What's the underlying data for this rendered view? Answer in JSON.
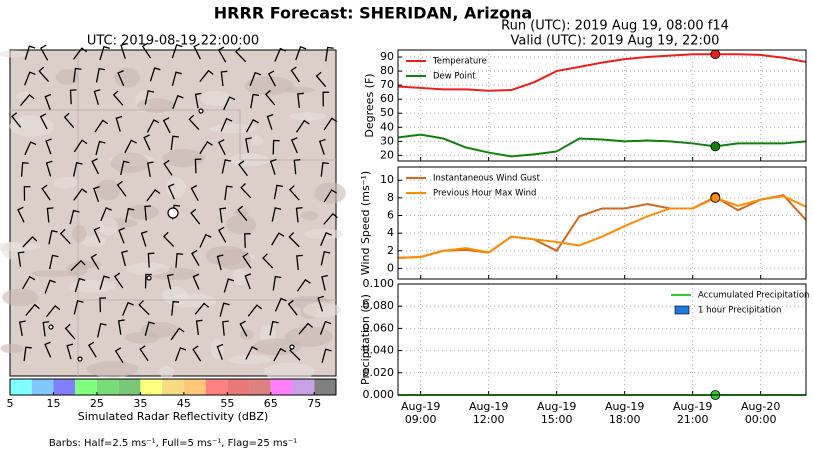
{
  "title": "HRRR Forecast: SHERIDAN, Arizona",
  "run": "Run (UTC): 2019 Aug 19, 08:00 f14",
  "valid": "Valid (UTC): 2019 Aug 19, 22:00",
  "map": {
    "title": "UTC: 2019-08-19 22:00:00",
    "colorbar": {
      "label": "Simulated Radar Reflectivity (dBZ)",
      "lim": [
        5,
        80
      ],
      "step": 5,
      "ticks": [
        5,
        15,
        25,
        35,
        45,
        55,
        65,
        75
      ],
      "colors": [
        "#80ffff",
        "#80c8ff",
        "#8080ff",
        "#80ff80",
        "#78dc78",
        "#78c878",
        "#ffff80",
        "#f5dc82",
        "#ffc878",
        "#ff8080",
        "#eb7878",
        "#dc8080",
        "#ff80ff",
        "#c8a0e6",
        "#808080"
      ]
    },
    "barbs_note": "Barbs: Half=2.5 ms⁻¹, Full=5 ms⁻¹, Flag=25 ms⁻¹"
  },
  "highlight_x": "Aug-19 22:00",
  "chart_data": [
    {
      "type": "line",
      "x": [
        "Aug-19 08:00",
        "Aug-19 09:00",
        "Aug-19 10:00",
        "Aug-19 11:00",
        "Aug-19 12:00",
        "Aug-19 13:00",
        "Aug-19 14:00",
        "Aug-19 15:00",
        "Aug-19 16:00",
        "Aug-19 17:00",
        "Aug-19 18:00",
        "Aug-19 19:00",
        "Aug-19 20:00",
        "Aug-19 21:00",
        "Aug-19 22:00",
        "Aug-19 23:00",
        "Aug-20 00:00",
        "Aug-20 01:00",
        "Aug-20 02:00"
      ],
      "ylabel": "Degrees (F)",
      "ylim": [
        16,
        95
      ],
      "yticks": [
        20,
        30,
        40,
        50,
        60,
        70,
        80,
        90
      ],
      "grid": true,
      "legend": "upper left",
      "series": [
        {
          "name": "Temperature",
          "color": "#ee1c1c",
          "values": [
            69,
            68,
            67,
            67,
            66,
            66.5,
            72,
            80,
            83,
            86,
            88.5,
            90,
            91,
            92,
            92,
            92,
            91.5,
            89.5,
            86.5
          ]
        },
        {
          "name": "Dew Point",
          "color": "#108010",
          "values": [
            32.7,
            34.8,
            32,
            25.6,
            22,
            19.3,
            20.7,
            22.8,
            32,
            31.3,
            30,
            30.6,
            30,
            28.5,
            26.4,
            28.5,
            28.5,
            28.5,
            30
          ]
        }
      ]
    },
    {
      "type": "line",
      "x": [
        "Aug-19 08:00",
        "Aug-19 09:00",
        "Aug-19 10:00",
        "Aug-19 11:00",
        "Aug-19 12:00",
        "Aug-19 13:00",
        "Aug-19 14:00",
        "Aug-19 15:00",
        "Aug-19 16:00",
        "Aug-19 17:00",
        "Aug-19 18:00",
        "Aug-19 19:00",
        "Aug-19 20:00",
        "Aug-19 21:00",
        "Aug-19 22:00",
        "Aug-19 23:00",
        "Aug-20 00:00",
        "Aug-20 01:00",
        "Aug-20 02:00"
      ],
      "ylabel": "Wind Speed (ms⁻¹)",
      "ylim": [
        -1.2,
        11.5
      ],
      "yticks": [
        0,
        2,
        4,
        6,
        8,
        10
      ],
      "grid": true,
      "legend": "upper left",
      "series": [
        {
          "name": "Instantaneous Wind Gust",
          "color": "#d2691e",
          "values": [
            1.2,
            1.3,
            2.0,
            2.1,
            1.8,
            3.6,
            3.3,
            2.0,
            5.9,
            6.8,
            6.8,
            7.3,
            6.8,
            6.8,
            8.1,
            6.6,
            7.8,
            8.3,
            5.5
          ]
        },
        {
          "name": "Previous Hour Max Wind",
          "color": "#ff8c00",
          "values": [
            1.2,
            1.3,
            2.0,
            2.3,
            1.8,
            3.6,
            3.3,
            3.0,
            2.6,
            3.6,
            4.8,
            5.9,
            6.8,
            6.8,
            8.0,
            7.1,
            7.8,
            8.2,
            7.0
          ]
        }
      ]
    },
    {
      "type": "line",
      "x": [
        "Aug-19 08:00",
        "Aug-19 09:00",
        "Aug-19 10:00",
        "Aug-19 11:00",
        "Aug-19 12:00",
        "Aug-19 13:00",
        "Aug-19 14:00",
        "Aug-19 15:00",
        "Aug-19 16:00",
        "Aug-19 17:00",
        "Aug-19 18:00",
        "Aug-19 19:00",
        "Aug-19 20:00",
        "Aug-19 21:00",
        "Aug-19 22:00",
        "Aug-19 23:00",
        "Aug-20 00:00",
        "Aug-20 01:00",
        "Aug-20 02:00"
      ],
      "xlim": [
        "Aug-19 08:00",
        "Aug-20 02:00"
      ],
      "xticks": [
        {
          "value": "Aug-19 09:00",
          "label": "Aug-19\n09:00"
        },
        {
          "value": "Aug-19 12:00",
          "label": "Aug-19\n12:00"
        },
        {
          "value": "Aug-19 15:00",
          "label": "Aug-19\n15:00"
        },
        {
          "value": "Aug-19 18:00",
          "label": "Aug-19\n18:00"
        },
        {
          "value": "Aug-19 21:00",
          "label": "Aug-19\n21:00"
        },
        {
          "value": "Aug-20 00:00",
          "label": "Aug-20\n00:00"
        }
      ],
      "ylabel": "Precipitation (in)",
      "ylim": [
        0,
        0.1
      ],
      "yticks": [
        {
          "value": 0,
          "label": "0.000"
        },
        {
          "value": 0.02,
          "label": "0.020"
        },
        {
          "value": 0.04,
          "label": "0.040"
        },
        {
          "value": 0.06,
          "label": "0.060"
        },
        {
          "value": 0.08,
          "label": "0.080"
        },
        {
          "value": 0.1,
          "label": "0.100"
        }
      ],
      "grid": true,
      "legend": "upper right",
      "series": [
        {
          "name": "Accumulated Precipitation",
          "color": "#32cd32",
          "values": [
            0,
            0,
            0,
            0,
            0,
            0,
            0,
            0,
            0,
            0,
            0,
            0,
            0,
            0,
            0,
            0,
            0,
            0,
            0
          ]
        },
        {
          "name": "1 hour Precipitation",
          "color": "#1e78e0",
          "kind": "bar",
          "values": [
            0,
            0,
            0,
            0,
            0,
            0,
            0,
            0,
            0,
            0,
            0,
            0,
            0,
            0,
            0,
            0,
            0,
            0,
            0
          ]
        }
      ]
    }
  ]
}
